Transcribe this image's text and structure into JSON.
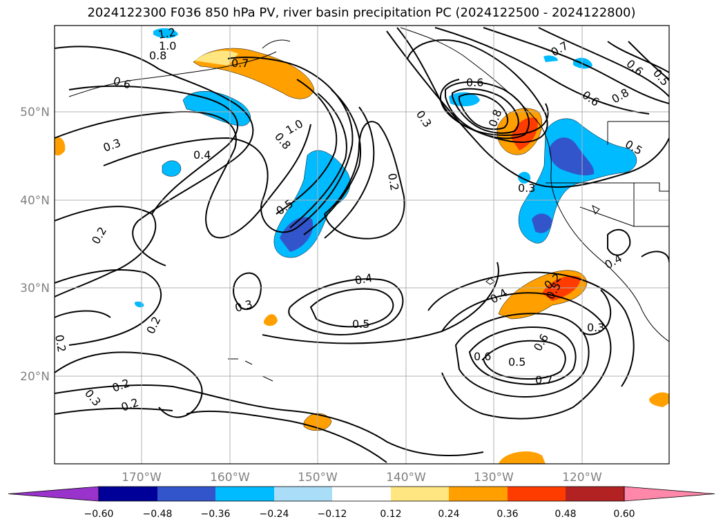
{
  "title": "2024122300 F036 850 hPa PV, river basin precipitation PC (2024122500 - 2024122800)",
  "lat_ticks": [
    "50°N",
    "40°N",
    "30°N",
    "20°N"
  ],
  "lon_ticks": [
    "170°W",
    "160°W",
    "150°W",
    "140°W",
    "130°W",
    "120°W"
  ],
  "contour_labels": [
    "1.2",
    "1.0",
    "0.8",
    "0.7",
    "0.6",
    "0.3",
    "0.4",
    "0.8",
    "1.0",
    "0.5",
    "0.2",
    "0.3",
    "0.2",
    "0.2",
    "0.2",
    "0.2",
    "0.2",
    "0.4",
    "0.5",
    "0.3",
    "0.4",
    "0.6",
    "0.5",
    "0.6",
    "0.7",
    "0.3",
    "0.6",
    "0.8",
    "0.3",
    "0.2",
    "0.7",
    "0.6",
    "0.5",
    "0.6",
    "0.8",
    "0.5",
    "0.4",
    "0.3",
    "0.5"
  ],
  "colorbar": {
    "ticks": [
      "−0.60",
      "−0.48",
      "−0.36",
      "−0.24",
      "−0.12",
      "0.12",
      "0.24",
      "0.36",
      "0.48",
      "0.60"
    ],
    "colors": [
      "#9933cc",
      "#000099",
      "#3355cc",
      "#00bbff",
      "#aaddf8",
      "#ffffff",
      "#ffe680",
      "#ffa000",
      "#ff3c00",
      "#b22222",
      "#ff88aa"
    ]
  },
  "chart_data": {
    "type": "map-contour",
    "title": "2024122300 F036 850 hPa PV, river basin precipitation PC (2024122500 - 2024122800)",
    "xlim_lon": [
      -180,
      -110
    ],
    "ylim_lat": [
      10,
      60
    ],
    "contour_levels_labeled": [
      0.2,
      0.3,
      0.4,
      0.5,
      0.6,
      0.7,
      0.8,
      1.0,
      1.2
    ],
    "fill_levels": [
      -0.6,
      -0.48,
      -0.36,
      -0.24,
      -0.12,
      0.12,
      0.24,
      0.36,
      0.48,
      0.6
    ],
    "grid": true
  }
}
